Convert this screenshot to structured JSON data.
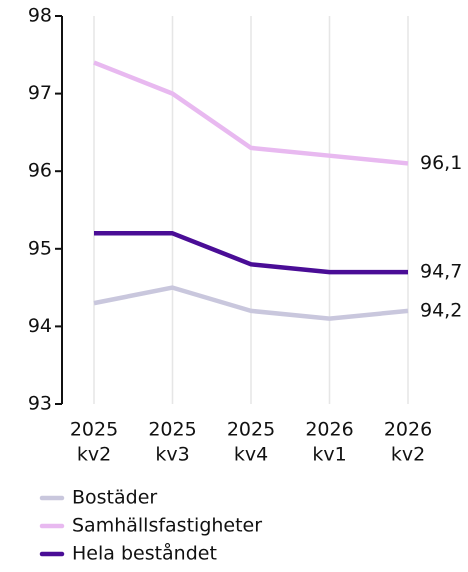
{
  "chart_data": {
    "type": "line",
    "categories": [
      [
        "2025",
        "kv2"
      ],
      [
        "2025",
        "kv3"
      ],
      [
        "2025",
        "kv4"
      ],
      [
        "2026",
        "kv1"
      ],
      [
        "2026",
        "kv2"
      ]
    ],
    "series": [
      {
        "name": "Bostäder",
        "color": "#c9c7dd",
        "values": [
          94.3,
          94.5,
          94.2,
          94.1,
          94.2
        ],
        "value_labels": [
          null,
          null,
          null,
          null,
          "94,2"
        ]
      },
      {
        "name": "Samhällsfastigheter",
        "color": "#e8b9f0",
        "values": [
          97.4,
          97.0,
          96.3,
          96.2,
          96.1
        ],
        "value_labels": [
          null,
          null,
          null,
          null,
          "96,1"
        ]
      },
      {
        "name": "Hela beståndet",
        "color": "#4a0d96",
        "values": [
          95.2,
          95.2,
          94.8,
          94.7,
          94.7
        ],
        "value_labels": [
          null,
          null,
          null,
          null,
          "94,7"
        ]
      }
    ],
    "ylim": [
      93,
      98
    ],
    "yticks": [
      93,
      94,
      95,
      96,
      97,
      98
    ],
    "grid": true
  }
}
